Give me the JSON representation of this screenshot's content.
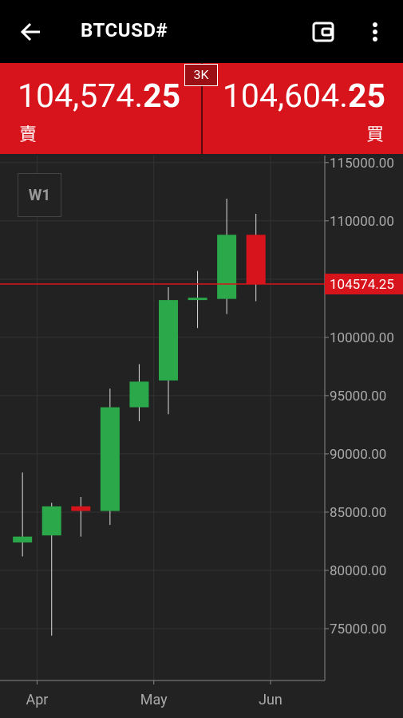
{
  "header": {
    "title": "BTCUSD#"
  },
  "quote": {
    "sell": {
      "price_main": "104,574.",
      "price_pips": "25",
      "label": "賣"
    },
    "buy": {
      "price_main": "104,604.",
      "price_pips": "25",
      "label": "買"
    },
    "spread": "3K"
  },
  "timeframe": "W1",
  "chart_data": {
    "type": "candlestick",
    "x": [
      0,
      1,
      2,
      3,
      4,
      5,
      6,
      7,
      8
    ],
    "open": [
      82400,
      83000,
      85500,
      85100,
      94000,
      96300,
      103200,
      103300,
      108800
    ],
    "high": [
      88400,
      85800,
      86300,
      95600,
      97700,
      104300,
      105700,
      111900,
      110600
    ],
    "low": [
      81200,
      74400,
      82900,
      83900,
      92800,
      93400,
      100800,
      102000,
      103100
    ],
    "close": [
      82900,
      85500,
      85100,
      94000,
      96200,
      103200,
      103400,
      108800,
      104574.25
    ],
    "up_color": "#2aa84a",
    "down_color": "#d7141c",
    "xlim": [
      -0.77,
      10.36
    ],
    "xticks": [
      {
        "value": 0.5,
        "label": "Apr"
      },
      {
        "value": 4.5,
        "label": "May"
      },
      {
        "value": 8.5,
        "label": "Jun"
      }
    ],
    "ylim": [
      70550,
      115600
    ],
    "yticks": [
      {
        "value": 75000,
        "label": "75000.00"
      },
      {
        "value": 80000,
        "label": "80000.00"
      },
      {
        "value": 85000,
        "label": "85000.00"
      },
      {
        "value": 90000,
        "label": "90000.00"
      },
      {
        "value": 95000,
        "label": "95000.00"
      },
      {
        "value": 100000,
        "label": "100000.00"
      },
      {
        "value": 105000,
        "label": "105000.00"
      },
      {
        "value": 110000,
        "label": "110000.00"
      },
      {
        "value": 115000,
        "label": "115000.00"
      }
    ],
    "current_price": 104574.25,
    "grid": true
  }
}
